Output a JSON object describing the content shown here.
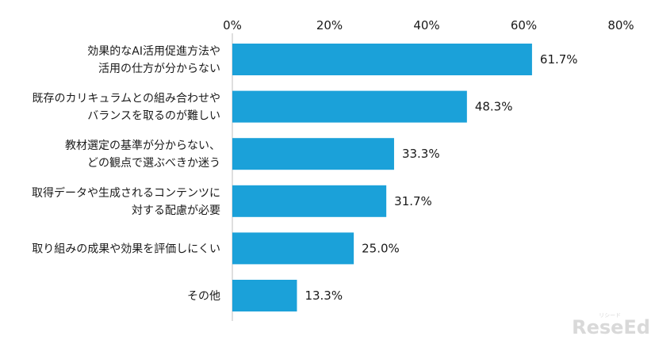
{
  "chart_data": {
    "type": "bar",
    "orientation": "horizontal",
    "categories": [
      [
        "効果的なAI活用促進方法や",
        "活用の仕方が分からない"
      ],
      [
        "既存のカリキュラムとの組み合わせや",
        "バランスを取るのが難しい"
      ],
      [
        "教材選定の基準が分からない、",
        "どの観点で選ぶべきか迷う"
      ],
      [
        "取得データや生成されるコンテンツに",
        "対する配慮が必要"
      ],
      [
        "取り組みの成果や効果を評価しにくい"
      ],
      [
        "その他"
      ]
    ],
    "values": [
      61.7,
      48.3,
      33.3,
      31.7,
      25.0,
      13.3
    ],
    "value_labels": [
      "61.7%",
      "48.3%",
      "33.3%",
      "31.7%",
      "25.0%",
      "13.3%"
    ],
    "xlim": [
      0,
      80
    ],
    "x_ticks": [
      0,
      20,
      40,
      60,
      80
    ],
    "x_tick_labels": [
      "0%",
      "20%",
      "40%",
      "60%",
      "80%"
    ],
    "axis_position": "top",
    "grid": false,
    "bar_color": "#1ba1d9",
    "axis_color": "#bfbfbf"
  },
  "watermark": {
    "text": "ReseEd",
    "sub": "リシード"
  }
}
